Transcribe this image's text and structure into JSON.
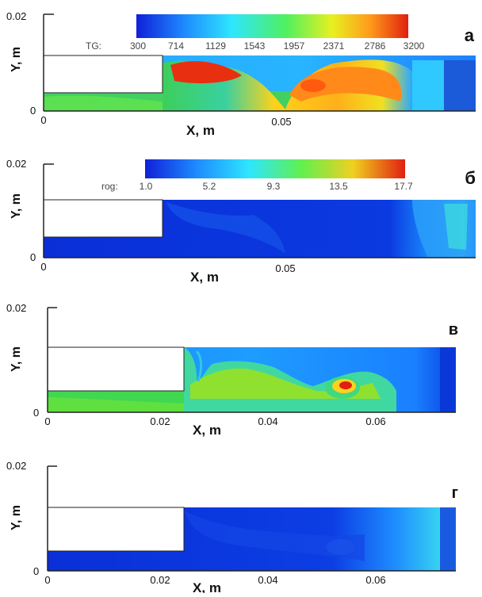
{
  "panels": [
    {
      "letter": "а",
      "colorbar": {
        "prefix": "TG:",
        "ticks": [
          "300",
          "714",
          "1129",
          "1543",
          "1957",
          "2371",
          "2786",
          "3200"
        ]
      },
      "y_axis": {
        "label": "Y, m",
        "ticks": [
          "0",
          "0.02"
        ]
      },
      "x_axis": {
        "label": "X, m",
        "ticks": [
          "0",
          "0.05"
        ]
      }
    },
    {
      "letter": "б",
      "colorbar": {
        "prefix": "rog:",
        "ticks": [
          "1.0",
          "5.2",
          "9.3",
          "13.5",
          "17.7"
        ]
      },
      "y_axis": {
        "label": "Y, m",
        "ticks": [
          "0",
          "0.02"
        ]
      },
      "x_axis": {
        "label": "X, m",
        "ticks": [
          "0",
          "0.05"
        ]
      }
    },
    {
      "letter": "в",
      "y_axis": {
        "label": "Y, m",
        "ticks": [
          "0",
          "0.02"
        ]
      },
      "x_axis": {
        "label": "X, m",
        "ticks": [
          "0",
          "0.02",
          "0.04",
          "0.06"
        ]
      }
    },
    {
      "letter": "г",
      "y_axis": {
        "label": "Y, m",
        "ticks": [
          "0",
          "0.02"
        ]
      },
      "x_axis": {
        "label": "X, m",
        "ticks": [
          "0",
          "0.02",
          "0.04",
          "0.06"
        ]
      }
    }
  ],
  "colors": {
    "cold": "#0a2fd8",
    "cool": "#1f8cff",
    "cyan": "#2ee6ff",
    "green": "#3cf04a",
    "yellow": "#ffe01a",
    "orange": "#ff8a1a",
    "red": "#e02010"
  }
}
